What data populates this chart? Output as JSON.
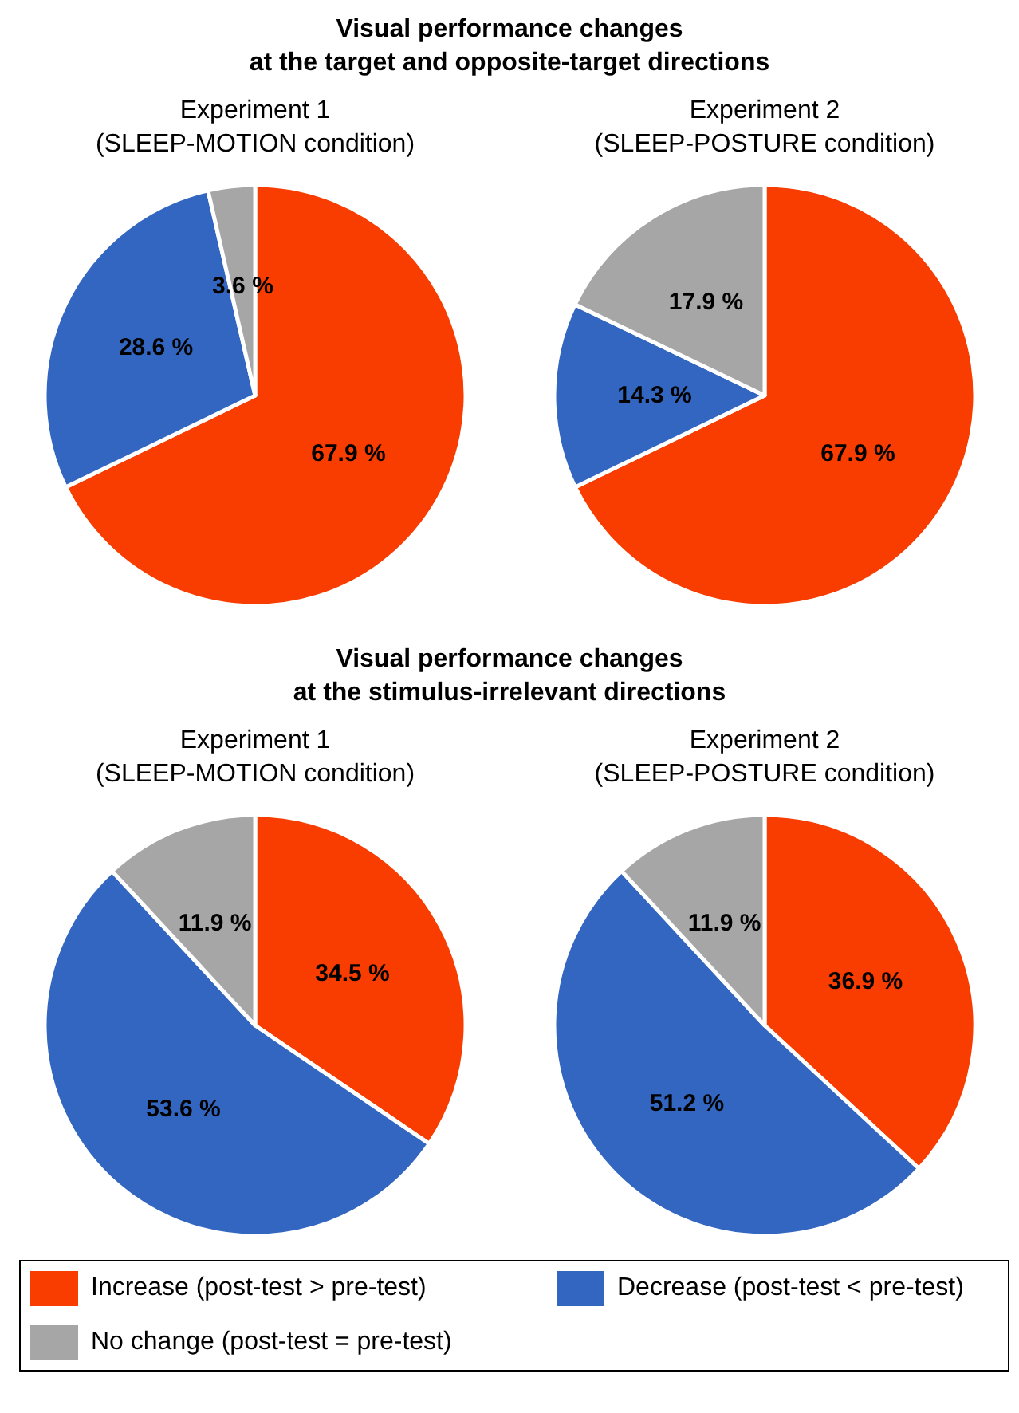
{
  "chart_data": [
    {
      "type": "pie",
      "title": "Experiment 1\n(SLEEP-MOTION condition)",
      "annotations": [
        "Visual performance changes\nat the target and opposite-target directions"
      ],
      "categories": [
        "Increase (post-test > pre-test)",
        "Decrease (post-test < pre-test)",
        "No change (post-test = pre-test)"
      ],
      "values": [
        67.9,
        28.6,
        3.6
      ],
      "value_labels": [
        "67.9 %",
        "28.6 %",
        "3.6 %"
      ],
      "colors": [
        "#f93c00",
        "#3366c0",
        "#a6a6a6"
      ],
      "legend": "bottom"
    },
    {
      "type": "pie",
      "title": "Experiment 2\n(SLEEP-POSTURE condition)",
      "categories": [
        null,
        null,
        null
      ],
      "values": [
        67.9,
        14.3,
        17.9
      ],
      "value_labels": [
        "67.9 %",
        "14.3 %",
        "17.9 %"
      ],
      "colors": [
        "#f93c00",
        "#3366c0",
        "#a6a6a6"
      ]
    },
    {
      "type": "pie",
      "title": "Experiment 1\n(SLEEP-MOTION condition)",
      "annotations": [
        "Visual performance changes\nat the stimulus-irrelevant directions"
      ],
      "categories": [
        null,
        null,
        null
      ],
      "values": [
        34.5,
        53.6,
        11.9
      ],
      "value_labels": [
        "34.5 %",
        "53.6 %",
        "11.9 %"
      ],
      "colors": [
        "#f93c00",
        "#3366c0",
        "#a6a6a6"
      ]
    },
    {
      "type": "pie",
      "title": "Experiment 2\n(SLEEP-POSTURE condition)",
      "categories": [
        null,
        null,
        null
      ],
      "values": [
        36.9,
        51.2,
        11.9
      ],
      "value_labels": [
        "36.9 %",
        "51.2 %",
        "11.9 %"
      ],
      "colors": [
        "#f93c00",
        "#3366c0",
        "#a6a6a6"
      ]
    }
  ]
}
